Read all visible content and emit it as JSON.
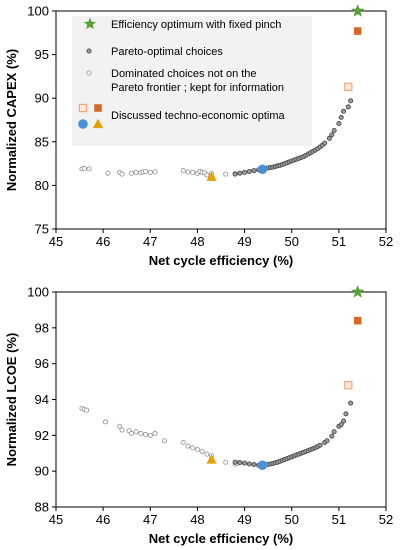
{
  "chart_data": [
    {
      "type": "scatter",
      "xlabel": "Net cycle efficiency (%)",
      "ylabel": "Normalized CAPEX (%)",
      "xlim": [
        45,
        52
      ],
      "ylim": [
        75,
        100
      ],
      "xticks": [
        45,
        46,
        47,
        48,
        49,
        50,
        51,
        52
      ],
      "yticks": [
        75,
        80,
        85,
        90,
        95,
        100
      ],
      "legend": {
        "position": "top-left",
        "entries": [
          {
            "marker": "star",
            "label": "Efficiency optimum with fixed pinch"
          },
          {
            "marker": "small-dark-circle",
            "label": "Pareto-optimal choices"
          },
          {
            "marker": "small-light-circle",
            "label_lines": [
              "Dominated choices not on the",
              "Pareto frontier ; kept for information"
            ]
          },
          {
            "marker": "circle-triangle",
            "label": "Discussed techno-economic optima"
          },
          {
            "marker": "squares",
            "label": ""
          }
        ]
      },
      "series": [
        {
          "role": "pareto",
          "color": "#707070",
          "points": [
            [
              48.8,
              81.3
            ],
            [
              48.9,
              81.4
            ],
            [
              49.0,
              81.5
            ],
            [
              49.1,
              81.6
            ],
            [
              49.2,
              81.7
            ],
            [
              49.3,
              81.8
            ],
            [
              49.45,
              81.95
            ],
            [
              49.5,
              82.0
            ],
            [
              49.55,
              82.05
            ],
            [
              49.6,
              82.1
            ],
            [
              49.65,
              82.15
            ],
            [
              49.7,
              82.25
            ],
            [
              49.75,
              82.3
            ],
            [
              49.8,
              82.4
            ],
            [
              49.85,
              82.5
            ],
            [
              49.9,
              82.6
            ],
            [
              49.95,
              82.7
            ],
            [
              50.0,
              82.8
            ],
            [
              50.05,
              82.9
            ],
            [
              50.1,
              83.0
            ],
            [
              50.15,
              83.1
            ],
            [
              50.2,
              83.2
            ],
            [
              50.25,
              83.3
            ],
            [
              50.3,
              83.45
            ],
            [
              50.35,
              83.6
            ],
            [
              50.4,
              83.75
            ],
            [
              50.45,
              83.9
            ],
            [
              50.5,
              84.05
            ],
            [
              50.55,
              84.2
            ],
            [
              50.6,
              84.4
            ],
            [
              50.65,
              84.6
            ],
            [
              50.7,
              84.85
            ],
            [
              50.8,
              85.4
            ],
            [
              50.85,
              85.8
            ],
            [
              50.9,
              86.3
            ],
            [
              51.0,
              87.1
            ],
            [
              51.05,
              87.8
            ],
            [
              51.1,
              88.5
            ],
            [
              51.2,
              89.0
            ],
            [
              51.25,
              89.7
            ]
          ]
        },
        {
          "role": "dominated",
          "color": "#a0a0a0",
          "points": [
            [
              45.55,
              81.9
            ],
            [
              45.6,
              81.95
            ],
            [
              45.7,
              81.9
            ],
            [
              46.1,
              81.4
            ],
            [
              46.35,
              81.5
            ],
            [
              46.4,
              81.3
            ],
            [
              46.6,
              81.4
            ],
            [
              46.7,
              81.5
            ],
            [
              46.8,
              81.45
            ],
            [
              46.85,
              81.55
            ],
            [
              46.9,
              81.6
            ],
            [
              47.0,
              81.5
            ],
            [
              47.1,
              81.55
            ],
            [
              47.7,
              81.7
            ],
            [
              47.8,
              81.55
            ],
            [
              47.9,
              81.5
            ],
            [
              48.0,
              81.4
            ],
            [
              48.05,
              81.6
            ],
            [
              48.1,
              81.5
            ],
            [
              48.15,
              81.45
            ],
            [
              48.2,
              81.2
            ],
            [
              48.3,
              81.35
            ],
            [
              48.6,
              81.3
            ],
            [
              48.8,
              81.35
            ]
          ]
        },
        {
          "role": "optimum-circle",
          "color": "#4a90d9",
          "points": [
            [
              49.38,
              81.85
            ]
          ]
        },
        {
          "role": "optimum-triangle",
          "color": "#e8a000",
          "points": [
            [
              48.3,
              81.0
            ]
          ]
        },
        {
          "role": "star",
          "color": "#5a9e3a",
          "points": [
            [
              51.4,
              100.0
            ]
          ]
        },
        {
          "role": "square-filled",
          "color": "#d4692a",
          "points": [
            [
              51.4,
              97.7
            ]
          ]
        },
        {
          "role": "square-open",
          "color": "#f0a882",
          "points": [
            [
              51.2,
              91.3
            ]
          ]
        }
      ]
    },
    {
      "type": "scatter",
      "xlabel": "Net cycle efficiency (%)",
      "ylabel": "Normalized LCOE (%)",
      "xlim": [
        45,
        52
      ],
      "ylim": [
        88,
        100
      ],
      "xticks": [
        45,
        46,
        47,
        48,
        49,
        50,
        51,
        52
      ],
      "yticks": [
        88,
        90,
        92,
        94,
        96,
        98,
        100
      ],
      "series": [
        {
          "role": "pareto",
          "color": "#707070",
          "points": [
            [
              48.8,
              90.5
            ],
            [
              48.9,
              90.48
            ],
            [
              49.0,
              90.45
            ],
            [
              49.1,
              90.4
            ],
            [
              49.2,
              90.37
            ],
            [
              49.3,
              90.33
            ],
            [
              49.45,
              90.35
            ],
            [
              49.5,
              90.38
            ],
            [
              49.55,
              90.4
            ],
            [
              49.6,
              90.43
            ],
            [
              49.65,
              90.47
            ],
            [
              49.7,
              90.5
            ],
            [
              49.75,
              90.55
            ],
            [
              49.8,
              90.6
            ],
            [
              49.85,
              90.65
            ],
            [
              49.9,
              90.7
            ],
            [
              49.95,
              90.75
            ],
            [
              50.0,
              90.8
            ],
            [
              50.05,
              90.85
            ],
            [
              50.1,
              90.9
            ],
            [
              50.15,
              90.95
            ],
            [
              50.2,
              91.0
            ],
            [
              50.25,
              91.05
            ],
            [
              50.3,
              91.1
            ],
            [
              50.35,
              91.15
            ],
            [
              50.4,
              91.2
            ],
            [
              50.45,
              91.25
            ],
            [
              50.5,
              91.3
            ],
            [
              50.55,
              91.38
            ],
            [
              50.6,
              91.45
            ],
            [
              50.7,
              91.6
            ],
            [
              50.75,
              91.7
            ],
            [
              50.85,
              91.95
            ],
            [
              50.9,
              92.2
            ],
            [
              51.0,
              92.5
            ],
            [
              51.05,
              92.6
            ],
            [
              51.1,
              92.8
            ],
            [
              51.15,
              93.2
            ],
            [
              51.25,
              93.8
            ]
          ]
        },
        {
          "role": "dominated",
          "color": "#a0a0a0",
          "points": [
            [
              45.55,
              93.5
            ],
            [
              45.6,
              93.45
            ],
            [
              45.65,
              93.4
            ],
            [
              46.05,
              92.75
            ],
            [
              46.35,
              92.5
            ],
            [
              46.4,
              92.3
            ],
            [
              46.55,
              92.25
            ],
            [
              46.6,
              92.1
            ],
            [
              46.7,
              92.2
            ],
            [
              46.8,
              92.1
            ],
            [
              46.9,
              92.05
            ],
            [
              47.0,
              92.0
            ],
            [
              47.1,
              92.1
            ],
            [
              47.3,
              91.7
            ],
            [
              47.7,
              91.6
            ],
            [
              47.8,
              91.4
            ],
            [
              47.9,
              91.3
            ],
            [
              48.0,
              91.2
            ],
            [
              48.1,
              91.1
            ],
            [
              48.2,
              90.95
            ],
            [
              48.3,
              90.85
            ],
            [
              48.6,
              90.5
            ],
            [
              48.8,
              90.4
            ],
            [
              48.85,
              90.45
            ]
          ]
        },
        {
          "role": "optimum-circle",
          "color": "#4a90d9",
          "points": [
            [
              49.38,
              90.33
            ]
          ]
        },
        {
          "role": "optimum-triangle",
          "color": "#e8a000",
          "points": [
            [
              48.3,
              90.65
            ]
          ]
        },
        {
          "role": "star",
          "color": "#5a9e3a",
          "points": [
            [
              51.4,
              100.0
            ]
          ]
        },
        {
          "role": "square-filled",
          "color": "#d4692a",
          "points": [
            [
              51.4,
              98.4
            ]
          ]
        },
        {
          "role": "square-open",
          "color": "#f0a882",
          "points": [
            [
              51.2,
              94.8
            ]
          ]
        }
      ]
    }
  ]
}
